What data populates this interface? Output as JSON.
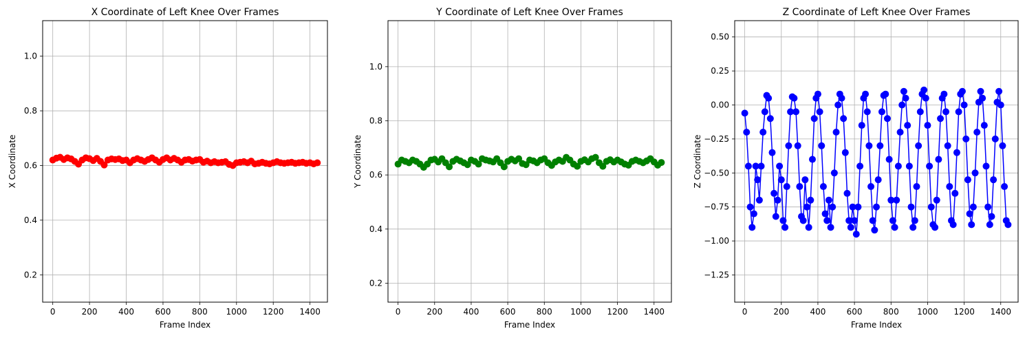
{
  "chart_data": [
    {
      "type": "line",
      "title": "X Coordinate of Left Knee Over Frames",
      "xlabel": "Frame Index",
      "ylabel": "X Coordinate",
      "xlim": [
        -55,
        1495
      ],
      "ylim": [
        0.1,
        1.13
      ],
      "xticks": [
        0,
        200,
        400,
        600,
        800,
        1000,
        1200,
        1400
      ],
      "xtick_labels": [
        "0",
        "200",
        "400",
        "600",
        "800",
        "1000",
        "1200",
        "1400"
      ],
      "yticks": [
        0.2,
        0.4,
        0.6,
        0.8,
        1.0
      ],
      "ytick_labels": [
        "0.2",
        "0.4",
        "0.6",
        "0.8",
        "1.0"
      ],
      "grid": true,
      "color": "#ff0000",
      "marker": "circle",
      "series": [
        {
          "x": [
            0,
            20,
            40,
            60,
            80,
            100,
            120,
            140,
            160,
            180,
            200,
            220,
            240,
            260,
            280,
            300,
            320,
            340,
            360,
            380,
            400,
            420,
            440,
            460,
            480,
            500,
            520,
            540,
            560,
            580,
            600,
            620,
            640,
            660,
            680,
            700,
            720,
            740,
            760,
            780,
            800,
            820,
            840,
            860,
            880,
            900,
            920,
            940,
            960,
            980,
            1000,
            1020,
            1040,
            1060,
            1080,
            1100,
            1120,
            1140,
            1160,
            1180,
            1200,
            1220,
            1240,
            1260,
            1280,
            1300,
            1320,
            1340,
            1360,
            1380,
            1400,
            1420,
            1440
          ],
          "y": [
            0.62,
            0.627,
            0.63,
            0.622,
            0.628,
            0.624,
            0.615,
            0.605,
            0.62,
            0.628,
            0.625,
            0.618,
            0.626,
            0.615,
            0.602,
            0.62,
            0.624,
            0.622,
            0.624,
            0.618,
            0.62,
            0.61,
            0.62,
            0.625,
            0.62,
            0.615,
            0.622,
            0.628,
            0.62,
            0.612,
            0.622,
            0.628,
            0.62,
            0.626,
            0.62,
            0.612,
            0.62,
            0.622,
            0.616,
            0.62,
            0.622,
            0.612,
            0.616,
            0.61,
            0.614,
            0.61,
            0.612,
            0.614,
            0.604,
            0.6,
            0.61,
            0.612,
            0.614,
            0.61,
            0.616,
            0.606,
            0.608,
            0.612,
            0.608,
            0.606,
            0.61,
            0.614,
            0.61,
            0.608,
            0.61,
            0.612,
            0.608,
            0.61,
            0.612,
            0.608,
            0.61,
            0.606,
            0.61
          ]
        }
      ]
    },
    {
      "type": "line",
      "title": "Y Coordinate of Left Knee Over Frames",
      "xlabel": "Frame Index",
      "ylabel": "Y Coordinate",
      "xlim": [
        -55,
        1495
      ],
      "ylim": [
        0.13,
        1.17
      ],
      "xticks": [
        0,
        200,
        400,
        600,
        800,
        1000,
        1200,
        1400
      ],
      "xtick_labels": [
        "0",
        "200",
        "400",
        "600",
        "800",
        "1000",
        "1200",
        "1400"
      ],
      "yticks": [
        0.2,
        0.4,
        0.6,
        0.8,
        1.0
      ],
      "ytick_labels": [
        "0.2",
        "0.4",
        "0.6",
        "0.8",
        "1.0"
      ],
      "grid": true,
      "color": "#008000",
      "marker": "circle",
      "series": [
        {
          "x": [
            0,
            20,
            40,
            60,
            80,
            100,
            120,
            140,
            160,
            180,
            200,
            220,
            240,
            260,
            280,
            300,
            320,
            340,
            360,
            380,
            400,
            420,
            440,
            460,
            480,
            500,
            520,
            540,
            560,
            580,
            600,
            620,
            640,
            660,
            680,
            700,
            720,
            740,
            760,
            780,
            800,
            820,
            840,
            860,
            880,
            900,
            920,
            940,
            960,
            980,
            1000,
            1020,
            1040,
            1060,
            1080,
            1100,
            1120,
            1140,
            1160,
            1180,
            1200,
            1220,
            1240,
            1260,
            1280,
            1300,
            1320,
            1340,
            1360,
            1380,
            1400,
            1420,
            1440
          ],
          "y": [
            0.64,
            0.655,
            0.65,
            0.645,
            0.655,
            0.65,
            0.64,
            0.628,
            0.64,
            0.655,
            0.658,
            0.648,
            0.66,
            0.645,
            0.63,
            0.65,
            0.658,
            0.652,
            0.645,
            0.638,
            0.655,
            0.65,
            0.64,
            0.66,
            0.655,
            0.652,
            0.648,
            0.66,
            0.645,
            0.63,
            0.65,
            0.658,
            0.652,
            0.66,
            0.642,
            0.638,
            0.655,
            0.652,
            0.645,
            0.655,
            0.66,
            0.645,
            0.635,
            0.648,
            0.655,
            0.65,
            0.665,
            0.655,
            0.64,
            0.632,
            0.65,
            0.656,
            0.648,
            0.66,
            0.665,
            0.645,
            0.632,
            0.65,
            0.656,
            0.648,
            0.655,
            0.648,
            0.64,
            0.636,
            0.65,
            0.655,
            0.65,
            0.645,
            0.652,
            0.66,
            0.648,
            0.636,
            0.646
          ]
        }
      ]
    },
    {
      "type": "line",
      "title": "Z Coordinate of Left Knee Over Frames",
      "xlabel": "Frame Index",
      "ylabel": "Z Coordinate",
      "xlim": [
        -55,
        1495
      ],
      "ylim": [
        -1.45,
        0.62
      ],
      "xticks": [
        0,
        200,
        400,
        600,
        800,
        1000,
        1200,
        1400
      ],
      "xtick_labels": [
        "0",
        "200",
        "400",
        "600",
        "800",
        "1000",
        "1200",
        "1400"
      ],
      "yticks": [
        -1.25,
        -1.0,
        -0.75,
        -0.5,
        -0.25,
        0.0,
        0.25,
        0.5
      ],
      "ytick_labels": [
        "−1.25",
        "−1.00",
        "−0.75",
        "−0.50",
        "−0.25",
        "0.00",
        "0.25",
        "0.50"
      ],
      "grid": true,
      "color": "#0000ff",
      "marker": "circle",
      "series": [
        {
          "x": [
            0,
            10,
            20,
            30,
            40,
            50,
            60,
            70,
            80,
            90,
            100,
            110,
            120,
            130,
            140,
            150,
            160,
            170,
            180,
            190,
            200,
            210,
            220,
            230,
            240,
            250,
            260,
            270,
            280,
            290,
            300,
            310,
            320,
            330,
            340,
            350,
            360,
            370,
            380,
            390,
            400,
            410,
            420,
            430,
            440,
            450,
            460,
            470,
            480,
            490,
            500,
            510,
            520,
            530,
            540,
            550,
            560,
            570,
            580,
            590,
            600,
            610,
            620,
            630,
            640,
            650,
            660,
            670,
            680,
            690,
            700,
            710,
            720,
            730,
            740,
            750,
            760,
            770,
            780,
            790,
            800,
            810,
            820,
            830,
            840,
            850,
            860,
            870,
            880,
            890,
            900,
            910,
            920,
            930,
            940,
            950,
            960,
            970,
            980,
            990,
            1000,
            1010,
            1020,
            1030,
            1040,
            1050,
            1060,
            1070,
            1080,
            1090,
            1100,
            1110,
            1120,
            1130,
            1140,
            1150,
            1160,
            1170,
            1180,
            1190,
            1200,
            1210,
            1220,
            1230,
            1240,
            1250,
            1260,
            1270,
            1280,
            1290,
            1300,
            1310,
            1320,
            1330,
            1340,
            1350,
            1360,
            1370,
            1380,
            1390,
            1400,
            1410,
            1420,
            1430,
            1440
          ],
          "y": [
            -0.06,
            -0.2,
            -0.45,
            -0.75,
            -0.9,
            -0.8,
            -0.45,
            -0.55,
            -0.7,
            -0.45,
            -0.2,
            -0.05,
            0.07,
            0.05,
            -0.1,
            -0.35,
            -0.65,
            -0.82,
            -0.7,
            -0.45,
            -0.55,
            -0.85,
            -0.9,
            -0.6,
            -0.3,
            -0.05,
            0.06,
            0.05,
            -0.05,
            -0.3,
            -0.6,
            -0.82,
            -0.85,
            -0.55,
            -0.75,
            -0.9,
            -0.7,
            -0.4,
            -0.1,
            0.05,
            0.08,
            -0.05,
            -0.3,
            -0.6,
            -0.8,
            -0.85,
            -0.7,
            -0.9,
            -0.75,
            -0.5,
            -0.2,
            0.0,
            0.08,
            0.05,
            -0.1,
            -0.35,
            -0.65,
            -0.85,
            -0.9,
            -0.75,
            -0.85,
            -0.95,
            -0.75,
            -0.45,
            -0.15,
            0.05,
            0.08,
            -0.05,
            -0.3,
            -0.6,
            -0.85,
            -0.92,
            -0.75,
            -0.55,
            -0.3,
            -0.05,
            0.07,
            0.08,
            -0.1,
            -0.4,
            -0.7,
            -0.85,
            -0.9,
            -0.7,
            -0.45,
            -0.2,
            0.0,
            0.1,
            0.05,
            -0.15,
            -0.45,
            -0.75,
            -0.9,
            -0.85,
            -0.6,
            -0.3,
            -0.05,
            0.08,
            0.11,
            0.05,
            -0.15,
            -0.45,
            -0.75,
            -0.88,
            -0.9,
            -0.7,
            -0.4,
            -0.1,
            0.05,
            0.08,
            -0.05,
            -0.3,
            -0.6,
            -0.85,
            -0.88,
            -0.65,
            -0.35,
            -0.05,
            0.08,
            0.1,
            0.0,
            -0.25,
            -0.55,
            -0.8,
            -0.88,
            -0.75,
            -0.5,
            -0.2,
            0.02,
            0.1,
            0.05,
            -0.15,
            -0.45,
            -0.75,
            -0.88,
            -0.82,
            -0.55,
            -0.25,
            0.02,
            0.1,
            0.0,
            -0.3,
            -0.6,
            -0.85,
            -0.88
          ]
        }
      ]
    }
  ]
}
